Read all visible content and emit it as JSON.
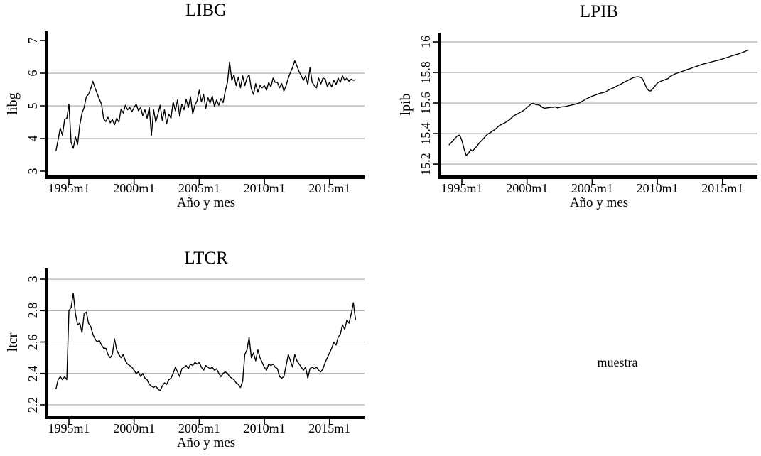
{
  "figure": {
    "background": "#ffffff",
    "text_color": "#000000",
    "grid_color": "#a8a8a8",
    "line_color": "#000000",
    "muestra_label": "muestra"
  },
  "chart_data": [
    {
      "type": "line",
      "title": "LIBG",
      "ylabel": "libg",
      "xlabel": "Año y mes",
      "legend": "none",
      "grid": "horizontal",
      "x_tick_labels": [
        "1995m1",
        "2000m1",
        "2005m1",
        "2010m1",
        "2015m1"
      ],
      "y_ticks": [
        {
          "value": 3,
          "label": "3",
          "grid": false
        },
        {
          "value": 4,
          "label": "4",
          "grid": true
        },
        {
          "value": 5,
          "label": "5",
          "grid": true
        },
        {
          "value": 6,
          "label": "6",
          "grid": true
        },
        {
          "value": 7,
          "label": "7",
          "grid": false
        }
      ],
      "ylim": [
        2.87,
        7.283
      ],
      "x_start": "1994m1",
      "x_end": "2017m1",
      "step_months": 2,
      "values": [
        3.62,
        3.95,
        4.32,
        4.1,
        4.58,
        4.62,
        5.05,
        3.88,
        3.7,
        4.05,
        3.82,
        4.42,
        4.78,
        4.95,
        5.28,
        5.35,
        5.52,
        5.75,
        5.55,
        5.38,
        5.2,
        5.05,
        4.6,
        4.52,
        4.65,
        4.48,
        4.58,
        4.42,
        4.62,
        4.5,
        4.9,
        4.78,
        5.02,
        4.88,
        4.95,
        4.82,
        4.95,
        5.05,
        4.85,
        4.95,
        4.7,
        4.88,
        4.62,
        4.95,
        4.1,
        4.88,
        4.5,
        4.75,
        5.02,
        4.55,
        4.88,
        4.45,
        4.75,
        4.62,
        5.12,
        4.85,
        5.18,
        4.68,
        5.05,
        4.88,
        5.2,
        4.95,
        5.28,
        4.75,
        5.02,
        5.15,
        5.48,
        5.12,
        5.35,
        4.92,
        5.25,
        5.08,
        5.3,
        4.98,
        5.18,
        5.02,
        5.22,
        5.1,
        5.45,
        5.72,
        6.34,
        5.78,
        5.95,
        5.62,
        5.88,
        5.55,
        5.92,
        5.62,
        5.85,
        5.95,
        5.52,
        5.35,
        5.68,
        5.42,
        5.62,
        5.55,
        5.62,
        5.48,
        5.72,
        5.58,
        5.85,
        5.72,
        5.72,
        5.55,
        5.68,
        5.45,
        5.62,
        5.85,
        6.02,
        6.18,
        6.38,
        6.22,
        6.05,
        5.92,
        5.78,
        5.92,
        5.65,
        6.17,
        5.72,
        5.62,
        5.55,
        5.85,
        5.67,
        5.85,
        5.82,
        5.59,
        5.72,
        5.58,
        5.78,
        5.65,
        5.85,
        5.72,
        5.92,
        5.78,
        5.85,
        5.75,
        5.82,
        5.78,
        5.8
      ]
    },
    {
      "type": "line",
      "title": "LPIB",
      "ylabel": "lpib",
      "xlabel": "Año y mes",
      "legend": "none",
      "grid": "horizontal",
      "x_tick_labels": [
        "1995m1",
        "2000m1",
        "2005m1",
        "2010m1",
        "2015m1"
      ],
      "y_ticks": [
        {
          "value": 15.2,
          "label": "15.2",
          "grid": true
        },
        {
          "value": 15.4,
          "label": "15.4",
          "grid": true
        },
        {
          "value": 15.6,
          "label": "15.6",
          "grid": true
        },
        {
          "value": 15.8,
          "label": "15.8",
          "grid": true
        },
        {
          "value": 16,
          "label": "16",
          "grid": true
        }
      ],
      "ylim": [
        15.126,
        16.0605
      ],
      "x_start": "1994m1",
      "x_end": "2017m1",
      "step_months": 2,
      "values": [
        15.325,
        15.34,
        15.355,
        15.372,
        15.385,
        15.39,
        15.355,
        15.3,
        15.256,
        15.27,
        15.295,
        15.285,
        15.305,
        15.318,
        15.34,
        15.352,
        15.368,
        15.385,
        15.398,
        15.405,
        15.415,
        15.425,
        15.435,
        15.45,
        15.458,
        15.465,
        15.472,
        15.482,
        15.49,
        15.505,
        15.518,
        15.525,
        15.532,
        15.54,
        15.548,
        15.558,
        15.572,
        15.582,
        15.595,
        15.598,
        15.59,
        15.588,
        15.585,
        15.572,
        15.566,
        15.568,
        15.57,
        15.572,
        15.572,
        15.575,
        15.568,
        15.572,
        15.575,
        15.576,
        15.578,
        15.582,
        15.585,
        15.588,
        15.592,
        15.596,
        15.6,
        15.608,
        15.616,
        15.625,
        15.632,
        15.638,
        15.645,
        15.65,
        15.655,
        15.66,
        15.665,
        15.668,
        15.672,
        15.68,
        15.688,
        15.695,
        15.7,
        15.708,
        15.715,
        15.722,
        15.73,
        15.738,
        15.745,
        15.752,
        15.76,
        15.766,
        15.77,
        15.772,
        15.77,
        15.762,
        15.735,
        15.7,
        15.682,
        15.679,
        15.695,
        15.712,
        15.73,
        15.738,
        15.745,
        15.75,
        15.755,
        15.76,
        15.775,
        15.782,
        15.79,
        15.795,
        15.8,
        15.805,
        15.81,
        15.815,
        15.82,
        15.825,
        15.83,
        15.835,
        15.84,
        15.845,
        15.85,
        15.855,
        15.858,
        15.862,
        15.865,
        15.87,
        15.873,
        15.877,
        15.88,
        15.884,
        15.888,
        15.893,
        15.898,
        15.902,
        15.907,
        15.912,
        15.916,
        15.92,
        15.925,
        15.93,
        15.936,
        15.942,
        15.946
      ]
    },
    {
      "type": "line",
      "title": "LTCR",
      "ylabel": "ltcr",
      "xlabel": "Año y mes",
      "legend": "none",
      "grid": "horizontal",
      "x_tick_labels": [
        "1995m1",
        "2000m1",
        "2005m1",
        "2010m1",
        "2015m1"
      ],
      "y_ticks": [
        {
          "value": 2.2,
          "label": "2.2",
          "grid": true
        },
        {
          "value": 2.4,
          "label": "2.4",
          "grid": true
        },
        {
          "value": 2.6,
          "label": "2.6",
          "grid": true
        },
        {
          "value": 2.8,
          "label": "2.8",
          "grid": true
        },
        {
          "value": 3,
          "label": "3",
          "grid": true
        }
      ],
      "ylim": [
        2.132,
        3.068
      ],
      "x_start": "1994m1",
      "x_end": "2017m1",
      "step_months": 2,
      "values": [
        2.3,
        2.36,
        2.38,
        2.36,
        2.38,
        2.36,
        2.8,
        2.82,
        2.91,
        2.78,
        2.71,
        2.72,
        2.66,
        2.78,
        2.79,
        2.72,
        2.7,
        2.65,
        2.62,
        2.6,
        2.61,
        2.58,
        2.56,
        2.56,
        2.52,
        2.5,
        2.52,
        2.62,
        2.55,
        2.52,
        2.5,
        2.52,
        2.48,
        2.46,
        2.45,
        2.44,
        2.42,
        2.4,
        2.41,
        2.38,
        2.4,
        2.37,
        2.36,
        2.33,
        2.32,
        2.31,
        2.32,
        2.3,
        2.29,
        2.32,
        2.34,
        2.33,
        2.36,
        2.37,
        2.4,
        2.44,
        2.41,
        2.38,
        2.43,
        2.44,
        2.45,
        2.43,
        2.46,
        2.45,
        2.47,
        2.46,
        2.47,
        2.44,
        2.42,
        2.45,
        2.44,
        2.43,
        2.44,
        2.42,
        2.43,
        2.4,
        2.38,
        2.4,
        2.41,
        2.4,
        2.38,
        2.37,
        2.36,
        2.34,
        2.33,
        2.31,
        2.35,
        2.52,
        2.55,
        2.63,
        2.5,
        2.53,
        2.48,
        2.55,
        2.5,
        2.47,
        2.44,
        2.42,
        2.46,
        2.45,
        2.46,
        2.44,
        2.43,
        2.38,
        2.37,
        2.38,
        2.45,
        2.52,
        2.48,
        2.44,
        2.52,
        2.48,
        2.46,
        2.44,
        2.42,
        2.44,
        2.37,
        2.43,
        2.44,
        2.43,
        2.44,
        2.42,
        2.41,
        2.43,
        2.47,
        2.5,
        2.53,
        2.56,
        2.6,
        2.58,
        2.63,
        2.65,
        2.71,
        2.68,
        2.74,
        2.72,
        2.78,
        2.85,
        2.74
      ]
    }
  ]
}
